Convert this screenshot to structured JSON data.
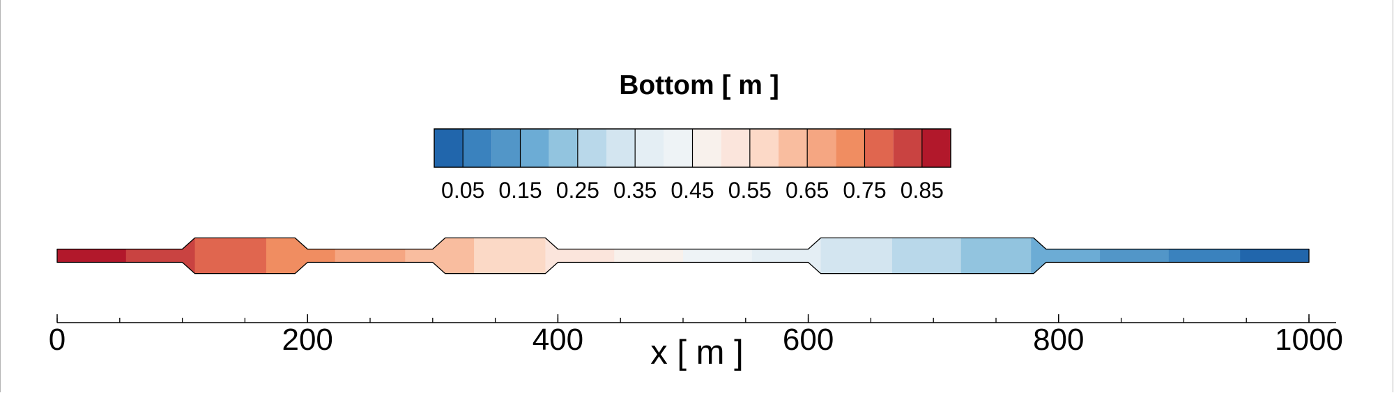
{
  "chart_data": {
    "type": "heatmap",
    "title": "Bottom [ m ]",
    "xlabel": "x [ m ]",
    "xlim": [
      0,
      1000
    ],
    "x_ticks": [
      0,
      200,
      400,
      600,
      800,
      1000
    ],
    "x_ticks_minor_step": 50,
    "colorbar": {
      "ticks": [
        "0.05",
        "0.15",
        "0.25",
        "0.35",
        "0.45",
        "0.55",
        "0.65",
        "0.75",
        "0.85"
      ],
      "levels": [
        0.0,
        0.05,
        0.1,
        0.15,
        0.2,
        0.25,
        0.3,
        0.35,
        0.4,
        0.45,
        0.5,
        0.55,
        0.6,
        0.65,
        0.7,
        0.75,
        0.8,
        0.85,
        0.9
      ],
      "colors": [
        "#2166ac",
        "#3a82be",
        "#5296c8",
        "#6cacd5",
        "#92c4df",
        "#b9d8ea",
        "#d3e5f0",
        "#e4eef4",
        "#eef3f6",
        "#f8f1ec",
        "#fbe5dc",
        "#fcd9c7",
        "#f9bd9f",
        "#f5a682",
        "#f08d61",
        "#e0664f",
        "#c94341",
        "#b2182b"
      ]
    },
    "channel_bottom": {
      "x": [
        0,
        55,
        110,
        167,
        222,
        278,
        333,
        390,
        445,
        500,
        555,
        610,
        667,
        722,
        778,
        833,
        888,
        945,
        1000
      ],
      "colors": [
        "#b2182b",
        "#c94341",
        "#e0664f",
        "#f08d61",
        "#f5a682",
        "#f9bd9f",
        "#fbd9c6",
        "#fbe5dc",
        "#f8f1ec",
        "#eef3f6",
        "#e4eef4",
        "#d3e5f0",
        "#b9d8ea",
        "#92c4df",
        "#6cacd5",
        "#5296c8",
        "#3a82be",
        "#2166ac"
      ]
    },
    "channel_width_profile": {
      "x": [
        0,
        100,
        110,
        190,
        200,
        300,
        310,
        390,
        400,
        600,
        610,
        780,
        790,
        1000
      ],
      "width": [
        1,
        1,
        2.7,
        2.7,
        1,
        1,
        2.7,
        2.7,
        1,
        1,
        2.7,
        2.7,
        1,
        1
      ]
    }
  }
}
